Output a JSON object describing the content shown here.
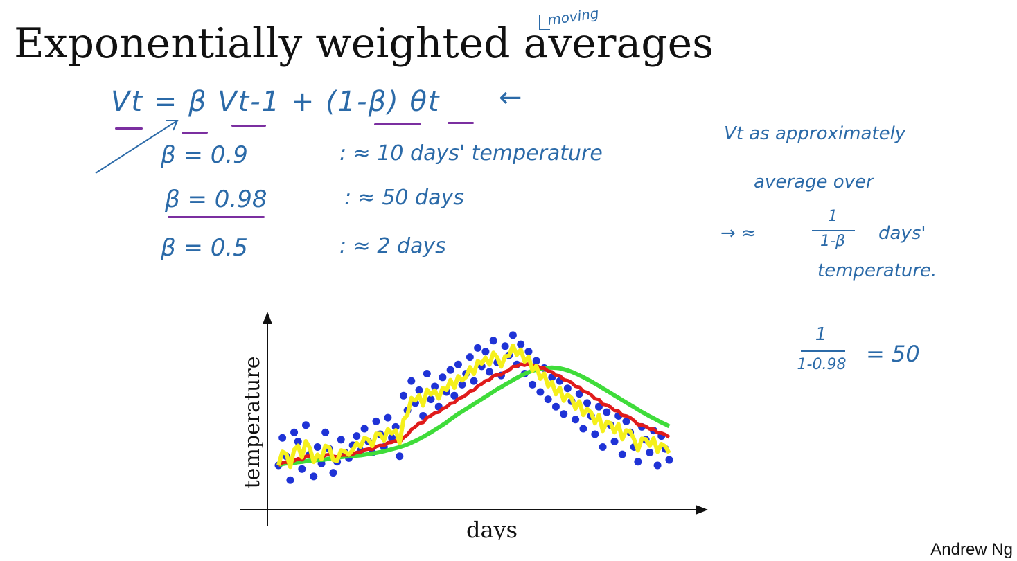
{
  "slide": {
    "title": "Exponentially weighted averages",
    "annotation_above_title": "moving",
    "formula": "Vt = β Vt-1 + (1-β) θt",
    "formula_arrow": "←",
    "beta_examples": [
      {
        "beta": "β = 0.9",
        "note": ": ≈ 10 days' temperature"
      },
      {
        "beta": "β = 0.98",
        "note": ": ≈ 50 days"
      },
      {
        "beta": "β = 0.5",
        "note": ": ≈ 2 days"
      }
    ],
    "side_notes": {
      "line1": "Vt as approximately",
      "line2": "average over",
      "line3_prefix": "→ ≈",
      "line3_suffix": "days'",
      "line4": "temperature.",
      "fraction1_num": "1",
      "fraction1_den": "1-β",
      "fraction2_num": "1",
      "fraction2_den": "1-0.98",
      "fraction2_result": "= 50"
    },
    "footer": "Andrew Ng"
  },
  "colors": {
    "ink_blue": "#2b6aa8",
    "underline_purple": "#7b2fa0",
    "points": "#1f33d6",
    "red_line": "#e01b1b",
    "yellow_line": "#f5f01c",
    "green_line": "#3fdc3a"
  },
  "chart_data": {
    "type": "scatter",
    "xlabel": "days",
    "ylabel": "temperature",
    "x": [
      0,
      1,
      2,
      3,
      4,
      5,
      6,
      7,
      8,
      9,
      10,
      11,
      12,
      13,
      14,
      15,
      16,
      17,
      18,
      19,
      20,
      21,
      22,
      23,
      24,
      25,
      26,
      27,
      28,
      29,
      30,
      31,
      32,
      33,
      34,
      35,
      36,
      37,
      38,
      39,
      40,
      41,
      42,
      43,
      44,
      45,
      46,
      47,
      48,
      49,
      50,
      51,
      52,
      53,
      54,
      55,
      56,
      57,
      58,
      59,
      60,
      61,
      62,
      63,
      64,
      65,
      66,
      67,
      68,
      69,
      70,
      71,
      72,
      73,
      74,
      75,
      76,
      77,
      78,
      79,
      80,
      81,
      82,
      83,
      84,
      85,
      86,
      87,
      88,
      89,
      90,
      91,
      92,
      93,
      94,
      95,
      96,
      97,
      98,
      99,
      100
    ],
    "y": [
      20,
      35,
      25,
      12,
      38,
      33,
      18,
      42,
      26,
      14,
      30,
      21,
      38,
      29,
      16,
      22,
      34,
      27,
      24,
      31,
      36,
      28,
      40,
      33,
      27,
      44,
      37,
      30,
      46,
      35,
      41,
      25,
      58,
      50,
      66,
      54,
      61,
      47,
      70,
      56,
      63,
      52,
      68,
      60,
      72,
      58,
      75,
      64,
      70,
      79,
      66,
      84,
      74,
      82,
      71,
      88,
      76,
      69,
      85,
      80,
      91,
      75,
      86,
      70,
      82,
      64,
      77,
      60,
      73,
      56,
      68,
      52,
      66,
      48,
      62,
      55,
      45,
      59,
      40,
      54,
      47,
      37,
      52,
      30,
      49,
      42,
      33,
      47,
      26,
      44,
      38,
      30,
      22,
      41,
      34,
      27,
      39,
      20,
      36,
      29,
      23
    ],
    "series": [
      {
        "name": "",
        "values_ref": "y"
      }
    ],
    "ylim": [
      0,
      100
    ],
    "xlim": [
      0,
      100
    ],
    "grid": false
  }
}
